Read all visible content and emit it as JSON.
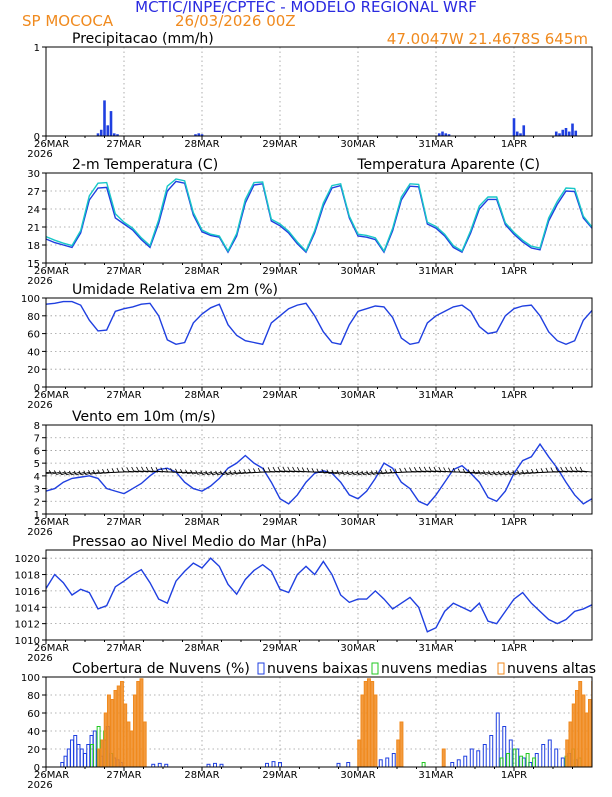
{
  "header": {
    "title": "MCTIC/INPE/CPTEC - MODELO REGIONAL WRF",
    "station": "SP MOCOCA",
    "run": "26/03/2026 00Z",
    "coords": "47.0047W 21.4678S 645m"
  },
  "colors": {
    "title": "#2a2ae0",
    "orange": "#f08a1e",
    "blue": "#1f3fe0",
    "cyan": "#18c7c7",
    "green": "#22c922",
    "black": "#000000"
  },
  "time_axis": {
    "hours": 144,
    "labels": [
      "26MAR",
      "27MAR",
      "28MAR",
      "29MAR",
      "30MAR",
      "31MAR",
      "1APR"
    ],
    "label_hours": [
      0,
      24,
      48,
      72,
      96,
      120,
      144
    ],
    "year": "2026"
  },
  "chart_data": [
    {
      "id": "precip",
      "type": "bar",
      "title": "Precipitacao (mm/h)",
      "ylim": [
        0,
        1
      ],
      "yticks": [
        0,
        1
      ],
      "x_unit": "hour since 26/03/2026 00Z",
      "x": [
        16,
        17,
        18,
        19,
        20,
        21,
        22,
        46,
        47,
        48,
        121,
        122,
        123,
        124,
        144,
        145,
        146,
        147,
        157,
        158,
        159,
        160,
        161,
        162,
        163
      ],
      "values": [
        0.03,
        0.07,
        0.4,
        0.12,
        0.28,
        0.03,
        0.02,
        0.02,
        0.03,
        0.02,
        0.03,
        0.05,
        0.03,
        0.02,
        0.2,
        0.05,
        0.03,
        0.12,
        0.05,
        0.03,
        0.07,
        0.09,
        0.05,
        0.14,
        0.06
      ]
    },
    {
      "id": "temperature",
      "type": "line",
      "title": "2-m Temperatura (C)",
      "legend_entry": "Temperatura Aparente (C)",
      "ylim": [
        15,
        30
      ],
      "yticks": [
        15,
        18,
        21,
        24,
        27,
        30
      ],
      "x_step_hours": 3,
      "series": [
        {
          "name": "2-m Temperatura (C)",
          "values": [
            19.0,
            18.4,
            18.0,
            17.6,
            20.0,
            25.5,
            27.5,
            27.6,
            22.5,
            21.5,
            20.5,
            18.9,
            17.6,
            21.6,
            27.0,
            28.6,
            28.3,
            23.0,
            20.2,
            19.6,
            19.3,
            16.8,
            19.5,
            25.0,
            28.0,
            28.2,
            22.0,
            21.2,
            20.0,
            18.2,
            16.8,
            20.0,
            24.5,
            27.5,
            27.9,
            22.5,
            19.5,
            19.3,
            18.9,
            16.8,
            20.4,
            25.5,
            27.8,
            27.7,
            21.5,
            20.8,
            19.5,
            17.6,
            16.8,
            20.0,
            24.0,
            25.6,
            25.6,
            21.4,
            19.8,
            18.5,
            17.5,
            17.2,
            22.0,
            24.8,
            27.0,
            26.9,
            22.5,
            20.8
          ]
        },
        {
          "name": "Temperatura Aparente (C)",
          "values": [
            19.4,
            18.8,
            18.3,
            17.9,
            20.4,
            26.2,
            28.3,
            28.4,
            23.2,
            21.8,
            20.8,
            19.2,
            17.9,
            22.2,
            27.8,
            29.0,
            28.7,
            23.4,
            20.5,
            19.8,
            19.5,
            17.0,
            19.9,
            25.6,
            28.4,
            28.5,
            22.3,
            21.5,
            20.3,
            18.5,
            17.0,
            20.4,
            25.0,
            27.9,
            28.2,
            22.8,
            19.8,
            19.6,
            19.2,
            17.0,
            20.8,
            26.0,
            28.2,
            28.1,
            21.8,
            21.1,
            19.8,
            17.9,
            17.0,
            20.4,
            24.5,
            26.0,
            26.0,
            21.7,
            20.1,
            18.8,
            17.8,
            17.5,
            22.5,
            25.3,
            27.5,
            27.4,
            22.8,
            21.0
          ]
        }
      ]
    },
    {
      "id": "humidity",
      "type": "line",
      "title": "Umidade Relativa em 2m (%)",
      "ylim": [
        0,
        100
      ],
      "yticks": [
        0,
        20,
        40,
        60,
        80,
        100
      ],
      "x_step_hours": 3,
      "series": [
        {
          "name": "Umidade Relativa em 2m (%)",
          "values": [
            93,
            94,
            96,
            96,
            92,
            75,
            63,
            64,
            85,
            88,
            90,
            93,
            94,
            80,
            53,
            48,
            50,
            72,
            82,
            89,
            93,
            70,
            58,
            52,
            50,
            48,
            72,
            80,
            88,
            92,
            94,
            80,
            62,
            50,
            48,
            70,
            85,
            88,
            91,
            90,
            78,
            55,
            48,
            50,
            72,
            80,
            85,
            90,
            92,
            85,
            68,
            60,
            62,
            80,
            88,
            91,
            92,
            80,
            62,
            52,
            48,
            52,
            75,
            86
          ]
        }
      ]
    },
    {
      "id": "wind",
      "type": "line",
      "title": "Vento em 10m (m/s)",
      "ylim": [
        1,
        8
      ],
      "yticks": [
        1,
        2,
        3,
        4,
        5,
        6,
        7,
        8
      ],
      "x_step_hours": 3,
      "series": [
        {
          "name": "Vento em 10m (m/s)",
          "values": [
            2.8,
            3.0,
            3.5,
            3.8,
            3.9,
            4.0,
            3.8,
            3.0,
            2.8,
            2.6,
            3.0,
            3.4,
            4.0,
            4.5,
            4.6,
            4.3,
            3.5,
            3.0,
            2.8,
            3.2,
            3.8,
            4.6,
            5.0,
            5.6,
            5.0,
            4.6,
            3.5,
            2.2,
            1.8,
            2.5,
            3.5,
            4.2,
            4.4,
            4.2,
            3.5,
            2.5,
            2.2,
            2.8,
            3.8,
            5.0,
            4.6,
            3.5,
            3.0,
            2.0,
            1.7,
            2.5,
            3.5,
            4.5,
            4.8,
            4.2,
            3.5,
            2.3,
            2.0,
            2.8,
            4.2,
            5.2,
            5.5,
            6.5,
            5.5,
            4.6,
            3.5,
            2.5,
            1.8,
            2.2
          ]
        }
      ],
      "barb_level": 4.3
    },
    {
      "id": "pressure",
      "type": "line",
      "title": "Pressao ao Nivel Medio do Mar (hPa)",
      "ylim": [
        1010,
        1021
      ],
      "yticks": [
        1010,
        1012,
        1014,
        1016,
        1018,
        1020
      ],
      "x_step_hours": 3,
      "series": [
        {
          "name": "Pressao ao Nivel Medio do Mar (hPa)",
          "values": [
            1016.3,
            1018.0,
            1017.0,
            1015.5,
            1016.2,
            1015.8,
            1013.8,
            1014.2,
            1016.5,
            1017.2,
            1018.0,
            1018.6,
            1017.0,
            1015.0,
            1014.5,
            1017.2,
            1018.4,
            1019.4,
            1018.8,
            1020.0,
            1019.0,
            1016.8,
            1015.6,
            1017.4,
            1018.5,
            1019.2,
            1018.4,
            1016.2,
            1015.8,
            1018.0,
            1019.0,
            1018.0,
            1019.6,
            1018.0,
            1015.5,
            1014.6,
            1015.0,
            1015.0,
            1016.0,
            1015.0,
            1013.8,
            1014.5,
            1015.2,
            1014.0,
            1011.0,
            1011.5,
            1013.5,
            1014.5,
            1014.0,
            1013.5,
            1014.5,
            1012.3,
            1012.0,
            1013.5,
            1015.0,
            1015.8,
            1014.5,
            1013.5,
            1012.5,
            1012.0,
            1012.5,
            1013.5,
            1013.8,
            1014.3
          ]
        }
      ]
    },
    {
      "id": "clouds",
      "type": "bar",
      "title": "Cobertura de Nuvens (%)",
      "legend": [
        "nuvens baixas",
        "nuvens medias",
        "nuvens altas"
      ],
      "ylim": [
        0,
        100
      ],
      "yticks": [
        0,
        20,
        40,
        60,
        80,
        100
      ],
      "x_unit": "hour since 26/03/2026 00Z",
      "series": [
        {
          "name": "nuvens baixas",
          "x": [
            5,
            6,
            7,
            8,
            9,
            10,
            11,
            12,
            13,
            14,
            15,
            16,
            17,
            18,
            19,
            20,
            21,
            22,
            23,
            33,
            35,
            37,
            50,
            52,
            54,
            68,
            70,
            72,
            90,
            93,
            103,
            105,
            107,
            125,
            127,
            129,
            131,
            133,
            135,
            137,
            139,
            141,
            143,
            145,
            147,
            149,
            151,
            153,
            155,
            157,
            159,
            161,
            163
          ],
          "values": [
            5,
            12,
            20,
            30,
            35,
            25,
            20,
            15,
            25,
            35,
            40,
            20,
            12,
            30,
            45,
            15,
            10,
            8,
            5,
            3,
            4,
            3,
            3,
            4,
            3,
            4,
            6,
            5,
            4,
            5,
            8,
            10,
            15,
            5,
            8,
            12,
            20,
            18,
            25,
            35,
            60,
            45,
            30,
            20,
            10,
            5,
            15,
            25,
            30,
            20,
            10,
            15,
            8
          ]
        },
        {
          "name": "nuvens medias",
          "x": [
            14,
            16,
            18,
            20,
            116,
            140,
            142,
            144,
            146,
            148,
            150,
            160,
            162,
            164
          ],
          "values": [
            25,
            45,
            40,
            15,
            5,
            10,
            15,
            20,
            12,
            15,
            10,
            12,
            20,
            10
          ]
        },
        {
          "name": "nuvens altas",
          "x": [
            16,
            17,
            18,
            19,
            20,
            21,
            22,
            23,
            24,
            25,
            26,
            27,
            28,
            29,
            30,
            96,
            97,
            98,
            99,
            100,
            101,
            108,
            109,
            122,
            160,
            161,
            162,
            163,
            164,
            165,
            166,
            167,
            168
          ],
          "values": [
            20,
            30,
            60,
            80,
            75,
            85,
            90,
            95,
            70,
            50,
            40,
            80,
            95,
            98,
            50,
            30,
            80,
            95,
            98,
            95,
            80,
            30,
            50,
            20,
            30,
            50,
            70,
            85,
            95,
            80,
            60,
            75,
            95
          ]
        }
      ]
    }
  ]
}
